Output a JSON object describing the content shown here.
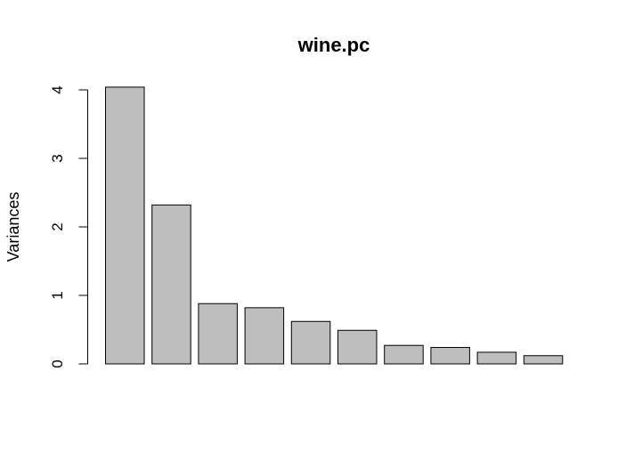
{
  "chart_data": {
    "type": "bar",
    "title": "wine.pc",
    "ylabel": "Variances",
    "xlabel": "",
    "ylim": [
      0,
      4
    ],
    "yticks": [
      0,
      1,
      2,
      3,
      4
    ],
    "values": [
      4.04,
      2.32,
      0.88,
      0.82,
      0.62,
      0.49,
      0.27,
      0.24,
      0.17,
      0.12
    ],
    "bar_color": "#bebebe",
    "grid": false
  }
}
